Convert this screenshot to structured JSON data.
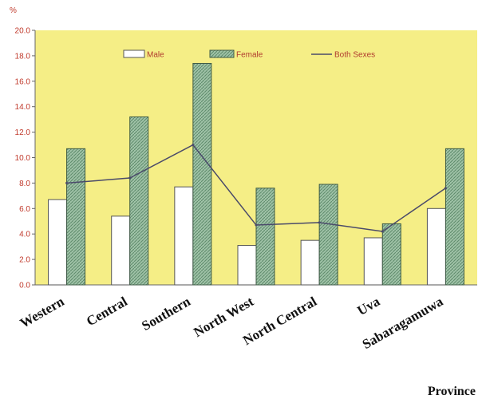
{
  "chart_data": {
    "type": "bar",
    "title": "",
    "xlabel": "Province",
    "ylabel": "%",
    "ylim": [
      0,
      20
    ],
    "yticks": [
      "0.0",
      "2.0",
      "4.0",
      "6.0",
      "8.0",
      "10.0",
      "12.0",
      "14.0",
      "16.0",
      "18.0",
      "20.0"
    ],
    "categories": [
      "Western",
      "Central",
      "Southern",
      "North West",
      "North Central",
      "Uva",
      "Sabaragamuwa"
    ],
    "series": [
      {
        "name": "Male",
        "type": "bar",
        "values": [
          6.7,
          5.4,
          7.7,
          3.1,
          3.5,
          3.7,
          6.0
        ]
      },
      {
        "name": "Female",
        "type": "bar",
        "values": [
          10.7,
          13.2,
          17.4,
          7.6,
          7.9,
          4.8,
          10.7
        ]
      },
      {
        "name": "Both Sexes",
        "type": "line",
        "values": [
          8.0,
          8.4,
          11.0,
          4.7,
          4.9,
          4.2,
          7.6
        ]
      }
    ],
    "legend_position": "top",
    "colors": {
      "plot_background": "#f5ee86",
      "male_fill": "#ffffff",
      "female_fill": "#9fc2a7",
      "female_hatch": "#5e8a6b",
      "line": "#4a4a6a",
      "text_accent": "#c0392b"
    }
  }
}
